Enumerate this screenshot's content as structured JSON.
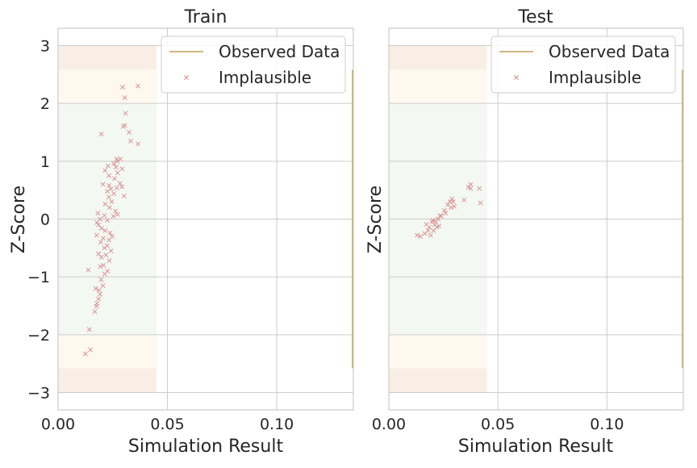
{
  "chart_data": [
    {
      "type": "scatter",
      "title": "Train",
      "xlabel": "Simulation Result",
      "ylabel": "Z-Score",
      "xlim": [
        0.0,
        0.135
      ],
      "ylim": [
        -3.3,
        3.3
      ],
      "xticks": [
        0.0,
        0.05,
        0.1
      ],
      "xtick_labels": [
        "0.00",
        "0.05",
        "0.10"
      ],
      "yticks": [
        -3,
        -2,
        -1,
        0,
        1,
        2,
        3
      ],
      "ytick_labels": [
        "−3",
        "−2",
        "−1",
        "0",
        "1",
        "2",
        "3"
      ],
      "grid": true,
      "legend": {
        "position": "top-right",
        "entries": [
          "Observed Data",
          "Implausible"
        ]
      },
      "bands": [
        {
          "y": [
            2.58,
            3.0
          ],
          "x": [
            0.0,
            0.045
          ],
          "color": "#f9eee4"
        },
        {
          "y": [
            -3.0,
            -2.58
          ],
          "x": [
            0.0,
            0.045
          ],
          "color": "#f9eee4"
        },
        {
          "y": [
            2.0,
            2.58
          ],
          "x": [
            0.0,
            0.045
          ],
          "color": "#fef8ee"
        },
        {
          "y": [
            -2.58,
            -2.0
          ],
          "x": [
            0.0,
            0.045
          ],
          "color": "#fef8ee"
        },
        {
          "y": [
            -2.0,
            2.0
          ],
          "x": [
            0.0,
            0.045
          ],
          "color": "#f3f8f3"
        }
      ],
      "observed_line": {
        "x": 0.135,
        "y": [
          -2.58,
          2.58
        ],
        "color": "#c8ad6e"
      },
      "series": [
        {
          "name": "Implausible",
          "marker": "x",
          "color": "#d98a8a",
          "points": [
            [
              0.0125,
              -2.33
            ],
            [
              0.0148,
              -2.26
            ],
            [
              0.0143,
              -1.91
            ],
            [
              0.0168,
              -1.6
            ],
            [
              0.0175,
              -1.51
            ],
            [
              0.0178,
              -1.46
            ],
            [
              0.0185,
              -1.38
            ],
            [
              0.0192,
              -1.3
            ],
            [
              0.0187,
              -1.23
            ],
            [
              0.0172,
              -1.2
            ],
            [
              0.0205,
              -1.15
            ],
            [
              0.0197,
              -1.05
            ],
            [
              0.0213,
              -0.95
            ],
            [
              0.0138,
              -0.88
            ],
            [
              0.0226,
              -0.9
            ],
            [
              0.0193,
              -0.82
            ],
            [
              0.0208,
              -0.8
            ],
            [
              0.0234,
              -0.72
            ],
            [
              0.0198,
              -0.66
            ],
            [
              0.0219,
              -0.62
            ],
            [
              0.0185,
              -0.6
            ],
            [
              0.0242,
              -0.55
            ],
            [
              0.0212,
              -0.5
            ],
            [
              0.0225,
              -0.46
            ],
            [
              0.0195,
              -0.4
            ],
            [
              0.0233,
              -0.36
            ],
            [
              0.0206,
              -0.33
            ],
            [
              0.0247,
              -0.3
            ],
            [
              0.0176,
              -0.28
            ],
            [
              0.0238,
              -0.24
            ],
            [
              0.0215,
              -0.2
            ],
            [
              0.0198,
              -0.16
            ],
            [
              0.0185,
              -0.1
            ],
            [
              0.0178,
              -0.06
            ],
            [
              0.0225,
              -0.02
            ],
            [
              0.0192,
              0.0
            ],
            [
              0.0212,
              0.06
            ],
            [
              0.0182,
              0.1
            ],
            [
              0.0253,
              0.05
            ],
            [
              0.0272,
              0.08
            ],
            [
              0.0262,
              0.14
            ],
            [
              0.0235,
              0.2
            ],
            [
              0.0215,
              0.26
            ],
            [
              0.0245,
              0.3
            ],
            [
              0.0232,
              0.38
            ],
            [
              0.0302,
              0.4
            ],
            [
              0.0255,
              0.44
            ],
            [
              0.0225,
              0.48
            ],
            [
              0.0242,
              0.52
            ],
            [
              0.0268,
              0.54
            ],
            [
              0.0292,
              0.56
            ],
            [
              0.0233,
              0.58
            ],
            [
              0.0205,
              0.6
            ],
            [
              0.0283,
              0.62
            ],
            [
              0.0258,
              0.7
            ],
            [
              0.0233,
              0.75
            ],
            [
              0.0272,
              0.8
            ],
            [
              0.0215,
              0.84
            ],
            [
              0.0293,
              0.87
            ],
            [
              0.0265,
              0.9
            ],
            [
              0.0228,
              0.92
            ],
            [
              0.0255,
              0.96
            ],
            [
              0.0272,
              1.0
            ],
            [
              0.0268,
              1.04
            ],
            [
              0.0285,
              1.04
            ],
            [
              0.0332,
              1.35
            ],
            [
              0.0325,
              1.5
            ],
            [
              0.0298,
              1.6
            ],
            [
              0.0305,
              1.62
            ],
            [
              0.0365,
              1.3
            ],
            [
              0.0308,
              1.83
            ],
            [
              0.0198,
              1.47
            ],
            [
              0.0305,
              2.1
            ],
            [
              0.0295,
              2.28
            ],
            [
              0.0365,
              2.3
            ]
          ]
        }
      ]
    },
    {
      "type": "scatter",
      "title": "Test",
      "xlabel": "Simulation Result",
      "ylabel": "Z-Score",
      "xlim": [
        0.0,
        0.135
      ],
      "ylim": [
        -3.3,
        3.3
      ],
      "xticks": [
        0.0,
        0.05,
        0.1
      ],
      "xtick_labels": [
        "0.00",
        "0.05",
        "0.10"
      ],
      "yticks": [
        -3,
        -2,
        -1,
        0,
        1,
        2,
        3
      ],
      "ytick_labels": [],
      "grid": true,
      "legend": {
        "position": "top-right",
        "entries": [
          "Observed Data",
          "Implausible"
        ]
      },
      "bands": [
        {
          "y": [
            2.58,
            3.0
          ],
          "x": [
            0.0,
            0.045
          ],
          "color": "#f9eee4"
        },
        {
          "y": [
            -3.0,
            -2.58
          ],
          "x": [
            0.0,
            0.045
          ],
          "color": "#f9eee4"
        },
        {
          "y": [
            2.0,
            2.58
          ],
          "x": [
            0.0,
            0.045
          ],
          "color": "#fef8ee"
        },
        {
          "y": [
            -2.58,
            -2.0
          ],
          "x": [
            0.0,
            0.045
          ],
          "color": "#fef8ee"
        },
        {
          "y": [
            -2.0,
            2.0
          ],
          "x": [
            0.0,
            0.045
          ],
          "color": "#f3f8f3"
        }
      ],
      "observed_line": {
        "x": 0.135,
        "y": [
          -2.58,
          2.58
        ],
        "color": "#c8ad6e"
      },
      "series": [
        {
          "name": "Implausible",
          "marker": "x",
          "color": "#d98a8a",
          "points": [
            [
              0.013,
              -0.28
            ],
            [
              0.0145,
              -0.3
            ],
            [
              0.0165,
              -0.25
            ],
            [
              0.0172,
              -0.09
            ],
            [
              0.018,
              -0.2
            ],
            [
              0.0185,
              -0.14
            ],
            [
              0.0192,
              -0.28
            ],
            [
              0.0198,
              -0.05
            ],
            [
              0.0202,
              -0.02
            ],
            [
              0.0205,
              -0.2
            ],
            [
              0.021,
              -0.1
            ],
            [
              0.0215,
              -0.04
            ],
            [
              0.022,
              -0.14
            ],
            [
              0.0225,
              0.0
            ],
            [
              0.023,
              -0.12
            ],
            [
              0.0235,
              0.06
            ],
            [
              0.024,
              0.05
            ],
            [
              0.0255,
              0.15
            ],
            [
              0.026,
              0.1
            ],
            [
              0.027,
              0.25
            ],
            [
              0.028,
              0.3
            ],
            [
              0.0285,
              0.2
            ],
            [
              0.029,
              0.35
            ],
            [
              0.0295,
              0.3
            ],
            [
              0.03,
              0.22
            ],
            [
              0.0345,
              0.33
            ],
            [
              0.0365,
              0.55
            ],
            [
              0.0375,
              0.6
            ],
            [
              0.0375,
              0.53
            ],
            [
              0.0415,
              0.53
            ],
            [
              0.042,
              0.28
            ]
          ]
        }
      ]
    }
  ]
}
